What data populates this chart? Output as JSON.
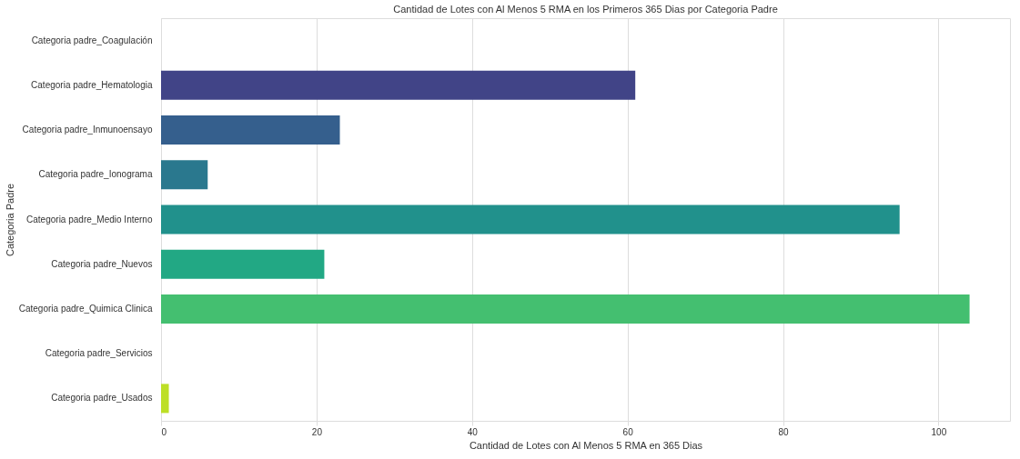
{
  "chart_data": {
    "type": "bar",
    "orientation": "horizontal",
    "title": "Cantidad de Lotes con Al Menos 5 RMA en los Primeros 365 Dias por Categoria Padre",
    "xlabel": "Cantidad de Lotes con Al Menos 5 RMA en 365 Dias",
    "ylabel": "Categoria Padre",
    "categories": [
      "Categoria padre_Coagulación",
      "Categoria padre_Hematologia",
      "Categoria padre_Inmunoensayo",
      "Categoria padre_Ionograma",
      "Categoria padre_Medio Interno",
      "Categoria padre_Nuevos",
      "Categoria padre_Quimica Clinica",
      "Categoria padre_Servicios",
      "Categoria padre_Usados"
    ],
    "values": [
      0,
      61,
      23,
      6,
      95,
      21,
      104,
      0,
      1
    ],
    "colors": [
      "#482475",
      "#414487",
      "#355f8d",
      "#2a788e",
      "#21918c",
      "#22a884",
      "#44bf70",
      "#7ad151",
      "#bddf26"
    ],
    "xlim": [
      0,
      109.2
    ],
    "xticks": [
      0,
      20,
      40,
      60,
      80,
      100
    ],
    "grid": "x"
  }
}
